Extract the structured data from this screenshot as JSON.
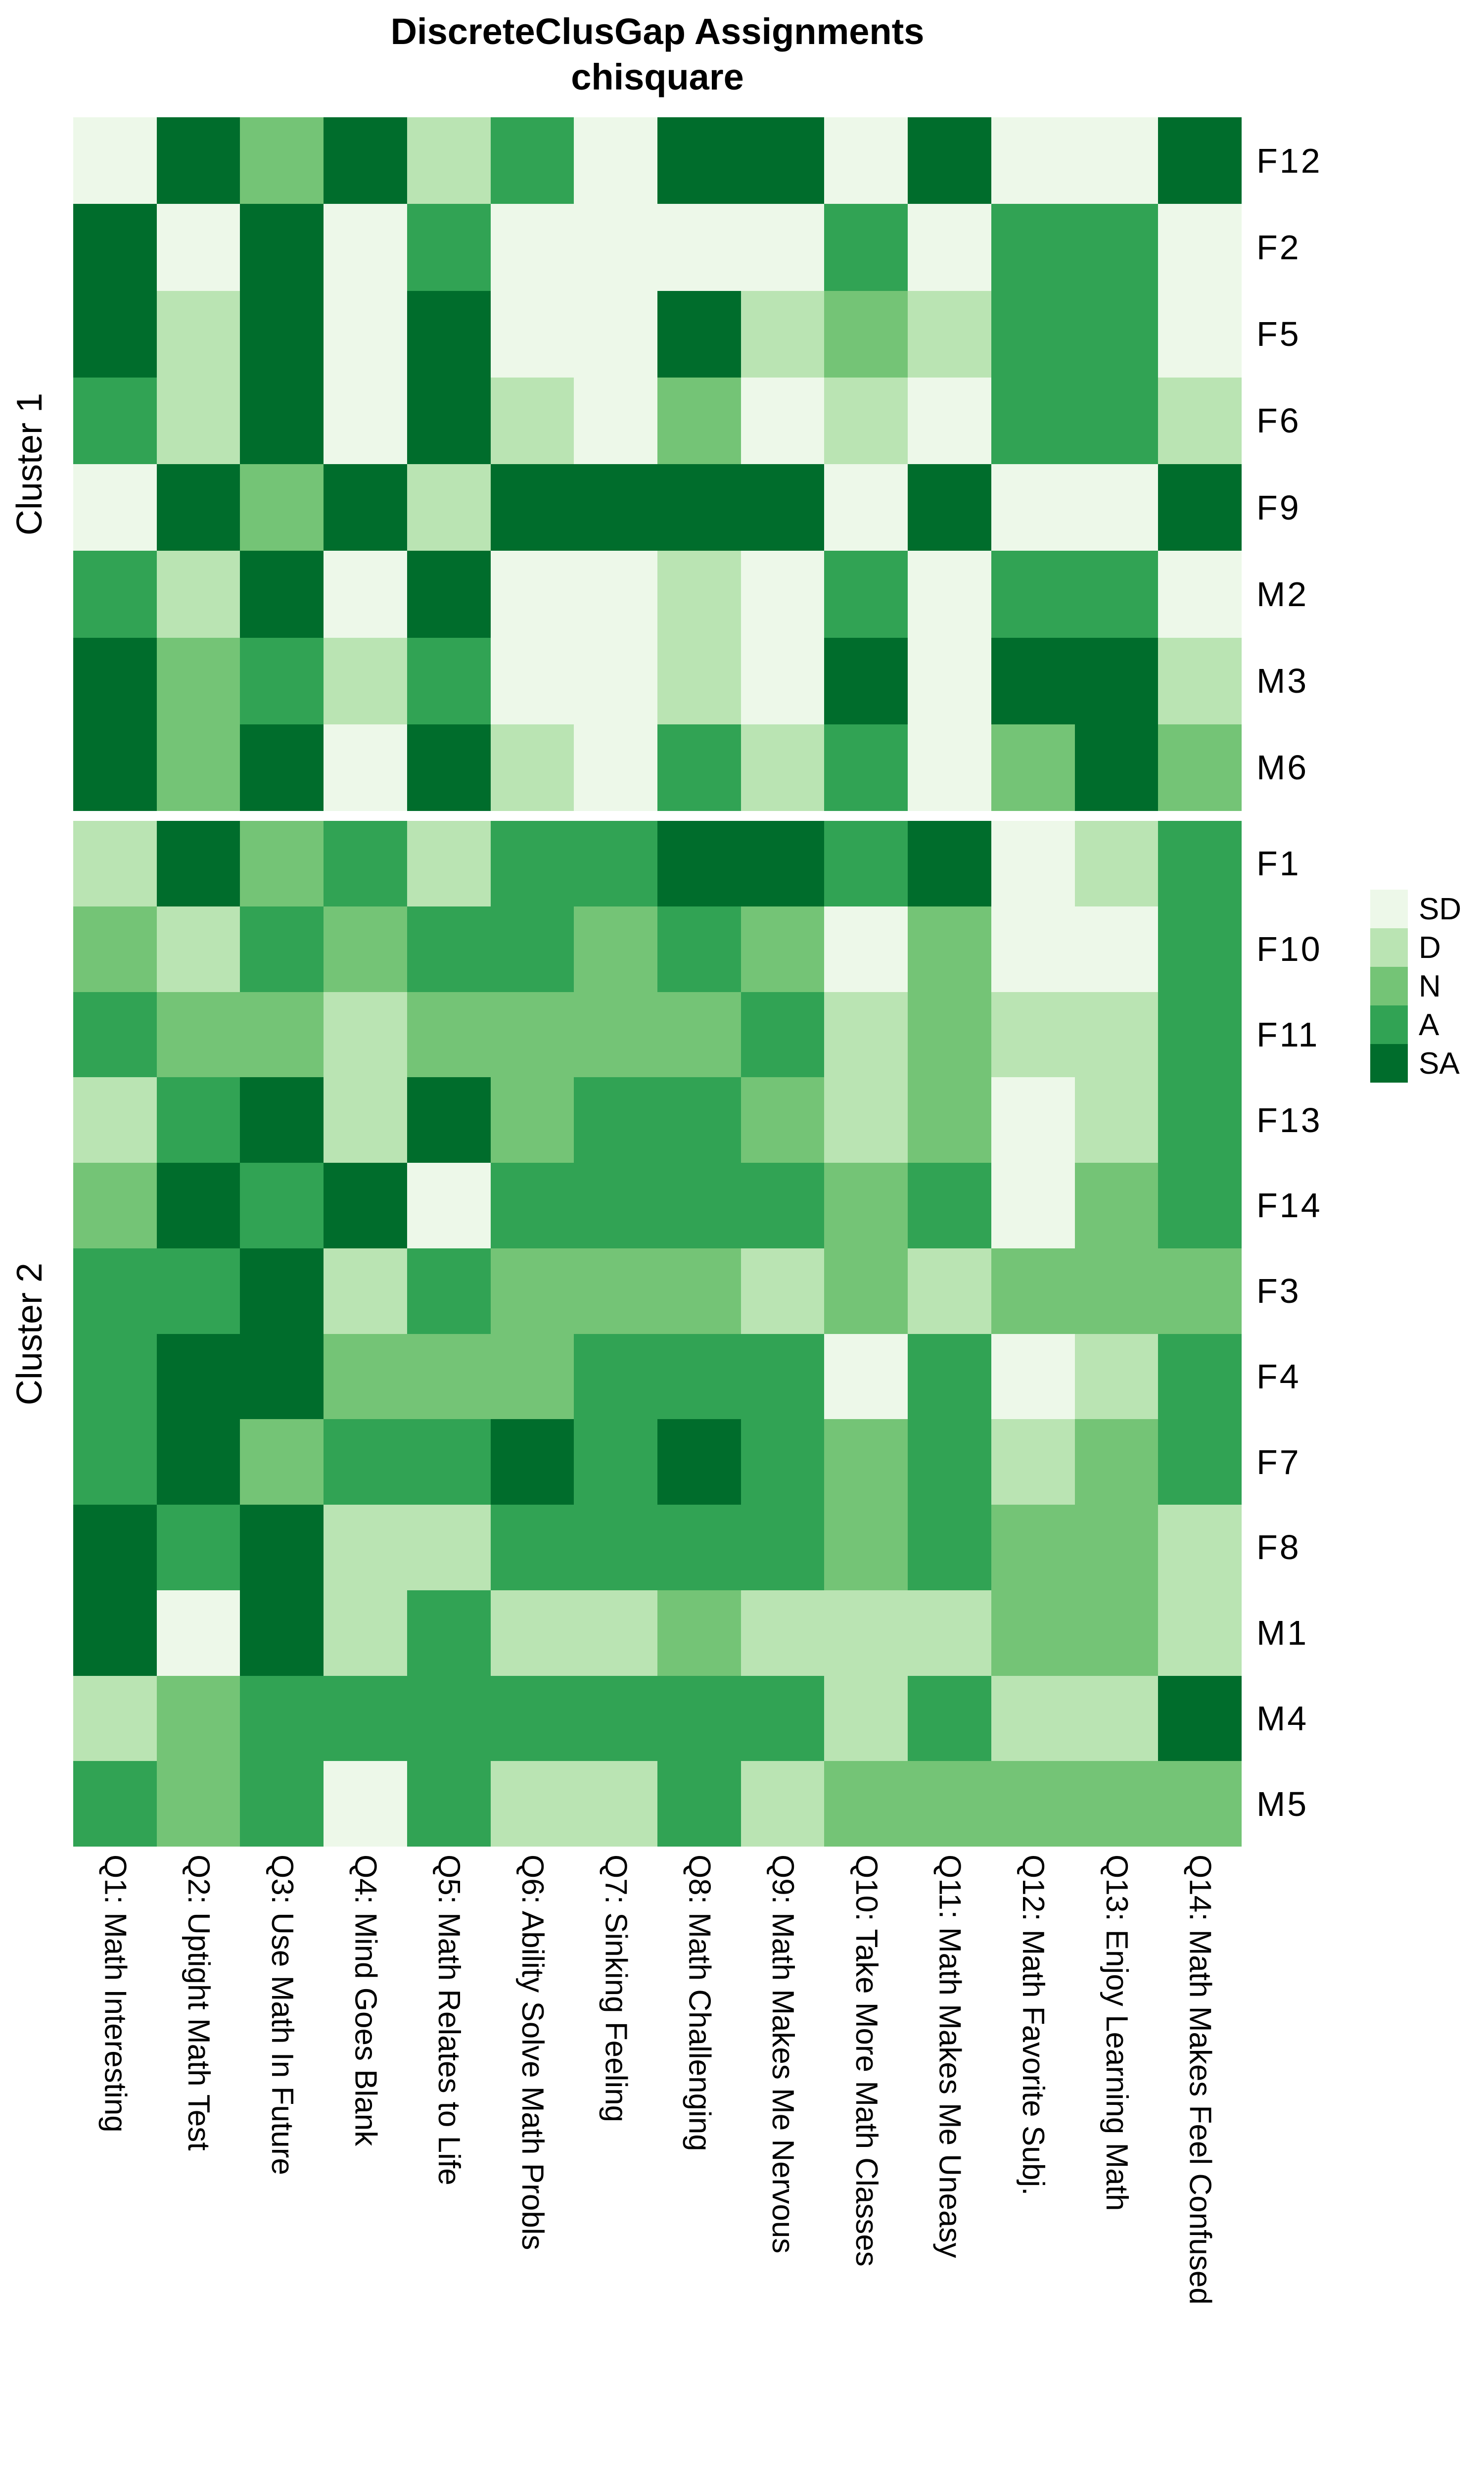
{
  "title": {
    "line1": "DiscreteClusGap Assignments",
    "line2": "chisquare"
  },
  "legend": {
    "items": [
      {
        "label": "SD",
        "color": "#edf8e9"
      },
      {
        "label": "D",
        "color": "#bae4b3"
      },
      {
        "label": "N",
        "color": "#74c476"
      },
      {
        "label": "A",
        "color": "#31a354"
      },
      {
        "label": "SA",
        "color": "#006d2c"
      }
    ]
  },
  "chart_data": {
    "type": "heatmap",
    "title": "DiscreteClusGap Assignments chisquare",
    "value_scale": [
      "SD",
      "D",
      "N",
      "A",
      "SA"
    ],
    "colors": {
      "SD": "#edf8e9",
      "D": "#bae4b3",
      "N": "#74c476",
      "A": "#31a354",
      "SA": "#006d2c"
    },
    "legend_position": "right",
    "x_categories": [
      "Q1: Math Interesting",
      "Q2: Uptight Math Test",
      "Q3: Use Math In Future",
      "Q4: Mind Goes Blank",
      "Q5: Math Relates to Life",
      "Q6: Ability Solve Math Probls",
      "Q7: Sinking Feeling",
      "Q8: Math Challenging",
      "Q9: Math Makes Me Nervous",
      "Q10: Take More Math Classes",
      "Q11: Math Makes Me Uneasy",
      "Q12: Math Favorite Subj.",
      "Q13: Enjoy Learning Math",
      "Q14: Math Makes Feel Confused"
    ],
    "facets": [
      {
        "name": "Cluster 1",
        "rows": [
          "F12",
          "F2",
          "F5",
          "F6",
          "F9",
          "M2",
          "M3",
          "M6"
        ],
        "values": [
          [
            "SD",
            "SA",
            "N",
            "SA",
            "D",
            "A",
            "SD",
            "SA",
            "SA",
            "SD",
            "SA",
            "SD",
            "SD",
            "SA"
          ],
          [
            "SA",
            "SD",
            "SA",
            "SD",
            "A",
            "SD",
            "SD",
            "SD",
            "SD",
            "A",
            "SD",
            "A",
            "A",
            "SD"
          ],
          [
            "SA",
            "D",
            "SA",
            "SD",
            "SA",
            "SD",
            "SD",
            "SA",
            "D",
            "N",
            "D",
            "A",
            "A",
            "SD"
          ],
          [
            "A",
            "D",
            "SA",
            "SD",
            "SA",
            "D",
            "SD",
            "N",
            "SD",
            "D",
            "SD",
            "A",
            "A",
            "D"
          ],
          [
            "SD",
            "SA",
            "N",
            "SA",
            "D",
            "SA",
            "SA",
            "SA",
            "SA",
            "SD",
            "SA",
            "SD",
            "SD",
            "SA"
          ],
          [
            "A",
            "D",
            "SA",
            "SD",
            "SA",
            "SD",
            "SD",
            "D",
            "SD",
            "A",
            "SD",
            "A",
            "A",
            "SD"
          ],
          [
            "SA",
            "N",
            "A",
            "D",
            "A",
            "SD",
            "SD",
            "D",
            "SD",
            "SA",
            "SD",
            "SA",
            "SA",
            "D"
          ],
          [
            "SA",
            "N",
            "SA",
            "SD",
            "SA",
            "D",
            "SD",
            "A",
            "D",
            "A",
            "SD",
            "N",
            "SA",
            "N"
          ]
        ]
      },
      {
        "name": "Cluster 2",
        "rows": [
          "F1",
          "F10",
          "F11",
          "F13",
          "F14",
          "F3",
          "F4",
          "F7",
          "F8",
          "M1",
          "M4",
          "M5"
        ],
        "values": [
          [
            "D",
            "SA",
            "N",
            "A",
            "D",
            "A",
            "A",
            "SA",
            "SA",
            "A",
            "SA",
            "SD",
            "D",
            "A"
          ],
          [
            "N",
            "D",
            "A",
            "N",
            "A",
            "A",
            "N",
            "A",
            "N",
            "SD",
            "N",
            "SD",
            "SD",
            "A"
          ],
          [
            "A",
            "N",
            "N",
            "D",
            "N",
            "N",
            "N",
            "N",
            "A",
            "D",
            "N",
            "D",
            "D",
            "A"
          ],
          [
            "D",
            "A",
            "SA",
            "D",
            "SA",
            "N",
            "A",
            "A",
            "N",
            "D",
            "N",
            "SD",
            "D",
            "A"
          ],
          [
            "N",
            "SA",
            "A",
            "SA",
            "SD",
            "A",
            "A",
            "A",
            "A",
            "N",
            "A",
            "SD",
            "N",
            "A"
          ],
          [
            "A",
            "A",
            "SA",
            "D",
            "A",
            "N",
            "N",
            "N",
            "D",
            "N",
            "D",
            "N",
            "N",
            "N"
          ],
          [
            "A",
            "SA",
            "SA",
            "N",
            "N",
            "N",
            "A",
            "A",
            "A",
            "SD",
            "A",
            "SD",
            "D",
            "A"
          ],
          [
            "A",
            "SA",
            "N",
            "A",
            "A",
            "SA",
            "A",
            "SA",
            "A",
            "N",
            "A",
            "D",
            "N",
            "A"
          ],
          [
            "SA",
            "A",
            "SA",
            "D",
            "D",
            "A",
            "A",
            "A",
            "A",
            "N",
            "A",
            "N",
            "N",
            "D"
          ],
          [
            "SA",
            "SD",
            "SA",
            "D",
            "A",
            "D",
            "D",
            "N",
            "D",
            "D",
            "D",
            "N",
            "N",
            "D"
          ],
          [
            "D",
            "N",
            "A",
            "A",
            "A",
            "A",
            "A",
            "A",
            "A",
            "D",
            "A",
            "D",
            "D",
            "SA"
          ],
          [
            "A",
            "N",
            "A",
            "SD",
            "A",
            "D",
            "D",
            "A",
            "D",
            "N",
            "N",
            "N",
            "N",
            "N"
          ]
        ]
      }
    ]
  }
}
